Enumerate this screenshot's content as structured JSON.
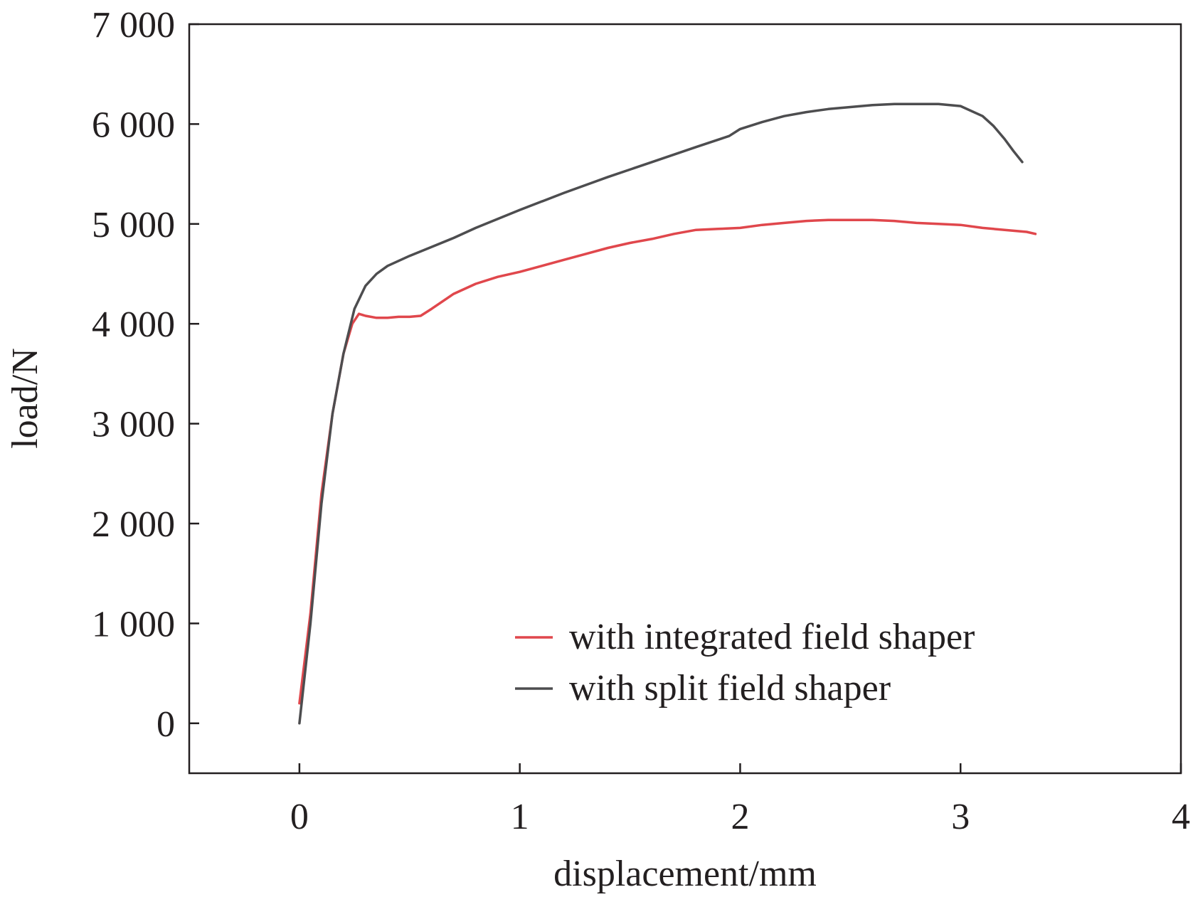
{
  "chart_data": {
    "type": "line",
    "title": "",
    "xlabel": "displacement/mm",
    "ylabel": "load/N",
    "xlim": [
      -0.5,
      4
    ],
    "ylim": [
      -500,
      7000
    ],
    "xticks": [
      0,
      1,
      2,
      3,
      4
    ],
    "yticks": [
      0,
      1000,
      2000,
      3000,
      4000,
      5000,
      6000,
      7000
    ],
    "xtick_labels": [
      "0",
      "1",
      "2",
      "3",
      "4"
    ],
    "ytick_labels": [
      "0",
      "1 000",
      "2 000",
      "3 000",
      "4 000",
      "5 000",
      "6 000",
      "7 000"
    ],
    "grid": false,
    "legend_position": "bottom-right",
    "series": [
      {
        "name": "with integrated field shaper",
        "color": "#e0474c",
        "x": [
          0.0,
          0.05,
          0.1,
          0.15,
          0.2,
          0.24,
          0.27,
          0.3,
          0.35,
          0.4,
          0.45,
          0.5,
          0.55,
          0.6,
          0.7,
          0.8,
          0.9,
          1.0,
          1.1,
          1.2,
          1.3,
          1.4,
          1.5,
          1.6,
          1.7,
          1.8,
          1.9,
          2.0,
          2.1,
          2.2,
          2.3,
          2.4,
          2.5,
          2.6,
          2.7,
          2.8,
          2.9,
          3.0,
          3.1,
          3.2,
          3.3,
          3.34
        ],
        "y": [
          200,
          1100,
          2300,
          3100,
          3700,
          4000,
          4100,
          4080,
          4060,
          4060,
          4070,
          4070,
          4080,
          4150,
          4300,
          4400,
          4470,
          4520,
          4580,
          4640,
          4700,
          4760,
          4810,
          4850,
          4900,
          4940,
          4950,
          4960,
          4990,
          5010,
          5030,
          5040,
          5040,
          5040,
          5030,
          5010,
          5000,
          4990,
          4960,
          4940,
          4920,
          4900
        ]
      },
      {
        "name": "with split field shaper",
        "color": "#4d4d4f",
        "x": [
          0.0,
          0.05,
          0.1,
          0.15,
          0.2,
          0.25,
          0.3,
          0.35,
          0.4,
          0.5,
          0.6,
          0.7,
          0.8,
          0.9,
          1.0,
          1.2,
          1.4,
          1.6,
          1.8,
          1.95,
          2.0,
          2.1,
          2.2,
          2.3,
          2.4,
          2.5,
          2.6,
          2.7,
          2.8,
          2.9,
          3.0,
          3.1,
          3.15,
          3.2,
          3.24,
          3.28
        ],
        "y": [
          0,
          1000,
          2200,
          3100,
          3700,
          4150,
          4380,
          4500,
          4580,
          4680,
          4770,
          4860,
          4960,
          5050,
          5140,
          5310,
          5470,
          5620,
          5770,
          5880,
          5950,
          6020,
          6080,
          6120,
          6150,
          6170,
          6190,
          6200,
          6200,
          6200,
          6180,
          6080,
          5980,
          5850,
          5730,
          5620
        ]
      }
    ]
  }
}
